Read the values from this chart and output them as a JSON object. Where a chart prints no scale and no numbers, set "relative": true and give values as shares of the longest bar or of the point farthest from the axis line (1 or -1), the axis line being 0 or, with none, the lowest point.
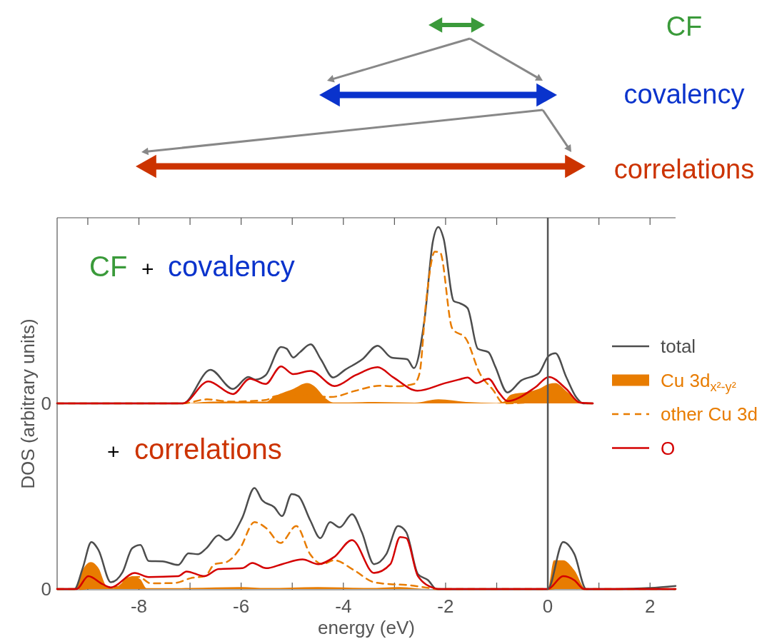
{
  "chart_data": [
    {
      "type": "line",
      "relative": true,
      "ylabel": "DOS (arbitrary units)",
      "tick_labels": false,
      "xlim": [
        -9.6,
        2.5
      ],
      "xticks": [
        {
          "value": -9,
          "label": null
        },
        -8,
        {
          "value": -7,
          "label": null
        },
        -6,
        {
          "value": -5,
          "label": null
        },
        -4,
        {
          "value": -3,
          "label": null
        },
        -2,
        {
          "value": -1,
          "label": null
        },
        0,
        {
          "value": 1,
          "label": null
        },
        2
      ],
      "legend": "right",
      "annotations": [
        "CF",
        "covalency",
        "correlations",
        "CF",
        "+",
        "covalency",
        "0"
      ],
      "ref_lines": [
        {
          "axis": "x",
          "value": 0,
          "color": "#555555"
        }
      ],
      "series": [
        {
          "name": "total",
          "color": "#4d4d4d",
          "x": [
            -9.6,
            -7.14,
            -6.6,
            -6.16,
            -5.86,
            -5.72,
            -5.52,
            -5.22,
            -5.11,
            -4.98,
            -4.85,
            -4.64,
            -4.44,
            -4.2,
            -3.97,
            -3.63,
            -3.33,
            -3.06,
            -2.75,
            -2.62,
            -2.41,
            -2.25,
            -2.14,
            -2.04,
            -1.84,
            -1.74,
            -1.57,
            -1.37,
            -1.16,
            -1.03,
            -0.79,
            -0.52,
            -0.18,
            0.02,
            0.15,
            0.36,
            0.56,
            0.69,
            0.88
          ],
          "values": [
            0,
            0,
            0.19,
            0.082,
            0.15,
            0.135,
            0.16,
            0.32,
            0.31,
            0.26,
            0.29,
            0.335,
            0.25,
            0.147,
            0.19,
            0.25,
            0.327,
            0.26,
            0.25,
            0.2,
            0.48,
            0.916,
            1,
            0.936,
            0.58,
            0.57,
            0.54,
            0.31,
            0.29,
            0.21,
            0.062,
            0.13,
            0.17,
            0.27,
            0.284,
            0.15,
            0.033,
            0,
            0
          ]
        },
        {
          "name": "Cu 3d$_{x²-y²}$",
          "type": "area",
          "color": "#e87c00",
          "x": [
            -9.6,
            -7.1,
            -6.6,
            -5.5,
            -5.39,
            -4.98,
            -4.71,
            -4.58,
            -4.34,
            -4.2,
            -3.4,
            -2.6,
            -2.14,
            -1.6,
            -1.0,
            -0.86,
            -0.72,
            -0.4,
            -0.18,
            0.02,
            0.15,
            0.36,
            0.56,
            0.7,
            0.88
          ],
          "values": [
            0,
            0,
            0.01,
            0.01,
            0.032,
            0.082,
            0.115,
            0.1,
            0.027,
            0.005,
            0.008,
            0.004,
            0.023,
            0.008,
            0.002,
            0.01,
            0.05,
            0.065,
            0.082,
            0.11,
            0.115,
            0.07,
            0.02,
            0,
            0
          ]
        },
        {
          "name": "other Cu 3d",
          "line_style": "dashed",
          "color": "#e87c00",
          "x": [
            -9.6,
            -7.14,
            -6.67,
            -6.2,
            -5.52,
            -5.32,
            -4.9,
            -4.24,
            -3.76,
            -3.29,
            -2.99,
            -2.62,
            -2.51,
            -2.38,
            -2.21,
            -2.11,
            -1.87,
            -1.6,
            -1.33,
            -1.06,
            -0.89,
            -0.8,
            0.3,
            0.8,
            0.88
          ],
          "values": [
            0,
            0,
            0.023,
            0.01,
            0.019,
            0.042,
            0.05,
            0.036,
            0.072,
            0.1,
            0.097,
            0.11,
            0.17,
            0.58,
            0.86,
            0.857,
            0.425,
            0.366,
            0.17,
            0.072,
            0.004,
            0,
            0.02,
            0,
            0
          ]
        },
        {
          "name": "O",
          "color": "#d40000",
          "x": [
            -9.6,
            -7.14,
            -6.64,
            -6.16,
            -5.83,
            -5.52,
            -5.22,
            -4.98,
            -4.64,
            -4.17,
            -3.76,
            -3.33,
            -3.02,
            -2.55,
            -2.01,
            -1.74,
            -1.57,
            -1.4,
            -1.16,
            -0.96,
            -0.79,
            -0.25,
            0.02,
            0.36,
            0.63,
            0.88
          ],
          "values": [
            0,
            0,
            0.125,
            0.053,
            0.14,
            0.11,
            0.21,
            0.166,
            0.184,
            0.098,
            0.16,
            0.205,
            0.147,
            0.072,
            0.115,
            0.135,
            0.147,
            0.115,
            0.14,
            0.062,
            0.013,
            0.09,
            0.15,
            0.082,
            0.004,
            0
          ]
        }
      ]
    },
    {
      "type": "line",
      "relative": true,
      "xlabel": "energy (eV)",
      "xlim": [
        -9.6,
        2.5
      ],
      "xticks": [
        {
          "value": -9,
          "label": null
        },
        -8,
        {
          "value": -7,
          "label": null
        },
        -6,
        {
          "value": -5,
          "label": null
        },
        -4,
        {
          "value": -3,
          "label": null
        },
        -2,
        {
          "value": -1,
          "label": null
        },
        0,
        {
          "value": 1,
          "label": null
        },
        2
      ],
      "annotations": [
        "+",
        "correlations",
        "0"
      ],
      "ref_lines": [
        {
          "axis": "x",
          "value": 0,
          "color": "#555555"
        }
      ],
      "series": [
        {
          "color": "#4d4d4d",
          "x": [
            -9.6,
            -9.26,
            -9.1,
            -8.93,
            -8.79,
            -8.55,
            -8.32,
            -8.13,
            -7.97,
            -7.81,
            -7.54,
            -7.23,
            -7.03,
            -6.84,
            -6.68,
            -6.44,
            -6.29,
            -5.98,
            -5.74,
            -5.59,
            -5.35,
            -5.2,
            -5.01,
            -4.88,
            -4.65,
            -4.45,
            -4.26,
            -4.07,
            -3.83,
            -3.64,
            -3.4,
            -3.16,
            -2.93,
            -2.77,
            -2.54,
            -2.34,
            -2.18,
            0,
            0.3,
            0.52,
            0.75,
            1.37,
            2.0,
            2.5
          ],
          "values": [
            0,
            0,
            0.206,
            0.464,
            0.385,
            0.067,
            0.167,
            0.404,
            0.436,
            0.278,
            0.274,
            0.238,
            0.353,
            0.345,
            0.404,
            0.531,
            0.484,
            0.702,
            1,
            0.88,
            0.809,
            0.722,
            0.94,
            0.92,
            0.682,
            0.504,
            0.662,
            0.611,
            0.741,
            0.563,
            0.246,
            0.345,
            0.623,
            0.563,
            0.147,
            0.087,
            0,
            0,
            0.464,
            0.345,
            0,
            0,
            0.01,
            0.03
          ]
        },
        {
          "type": "area",
          "color": "#e87c00",
          "x": [
            -9.6,
            -9.25,
            -9.08,
            -8.94,
            -8.79,
            -8.63,
            -8.5,
            -8.13,
            -7.97,
            -7.85,
            -7.0,
            -6.0,
            -5.5,
            -4.5,
            -3.5,
            -2.9,
            -2.3,
            0,
            0.12,
            0.3,
            0.52,
            0.75,
            2.5
          ],
          "values": [
            0,
            0,
            0.206,
            0.266,
            0.206,
            0.028,
            0.01,
            0.127,
            0.095,
            0.008,
            0.01,
            0.02,
            0.01,
            0.02,
            0.01,
            0.02,
            0,
            0,
            0.285,
            0.285,
            0.186,
            0,
            0
          ]
        },
        {
          "line_style": "dashed",
          "color": "#e87c00",
          "x": [
            -9.6,
            -9.2,
            -8.7,
            -8.4,
            -8.24,
            -8.0,
            -7.77,
            -7.3,
            -6.99,
            -6.7,
            -6.52,
            -6.29,
            -6.02,
            -5.74,
            -5.51,
            -5.23,
            -4.92,
            -4.65,
            -4.41,
            -4.18,
            -3.79,
            -3.4,
            -3.08,
            -2.77,
            -2.3,
            -2.2,
            0,
            0.3,
            0.75,
            2.5
          ],
          "values": [
            0,
            0,
            0.02,
            0.02,
            0.107,
            0.12,
            0.056,
            0.06,
            0.107,
            0.13,
            0.246,
            0.266,
            0.404,
            0.662,
            0.603,
            0.456,
            0.623,
            0.345,
            0.246,
            0.285,
            0.186,
            0.067,
            0.048,
            0.04,
            0.008,
            0,
            0,
            0.02,
            0,
            0
          ]
        },
        {
          "color": "#d40000",
          "x": [
            -9.6,
            -9.22,
            -8.99,
            -8.71,
            -8.55,
            -8.08,
            -7.81,
            -7.23,
            -7.07,
            -6.72,
            -6.44,
            -5.98,
            -5.78,
            -5.51,
            -5.2,
            -4.8,
            -4.49,
            -4.18,
            -3.83,
            -3.4,
            -3.08,
            -2.89,
            -2.77,
            -2.54,
            -2.22,
            -2.14,
            0,
            0.3,
            0.52,
            0.71,
            2.5
          ],
          "values": [
            0,
            0,
            0.127,
            0.048,
            0.016,
            0.159,
            0.119,
            0.127,
            0.174,
            0.127,
            0.198,
            0.206,
            0.258,
            0.206,
            0.246,
            0.293,
            0.246,
            0.317,
            0.484,
            0.159,
            0.246,
            0.515,
            0.504,
            0.127,
            0.008,
            0,
            0,
            0.127,
            0.087,
            0,
            0
          ]
        }
      ]
    }
  ]
}
